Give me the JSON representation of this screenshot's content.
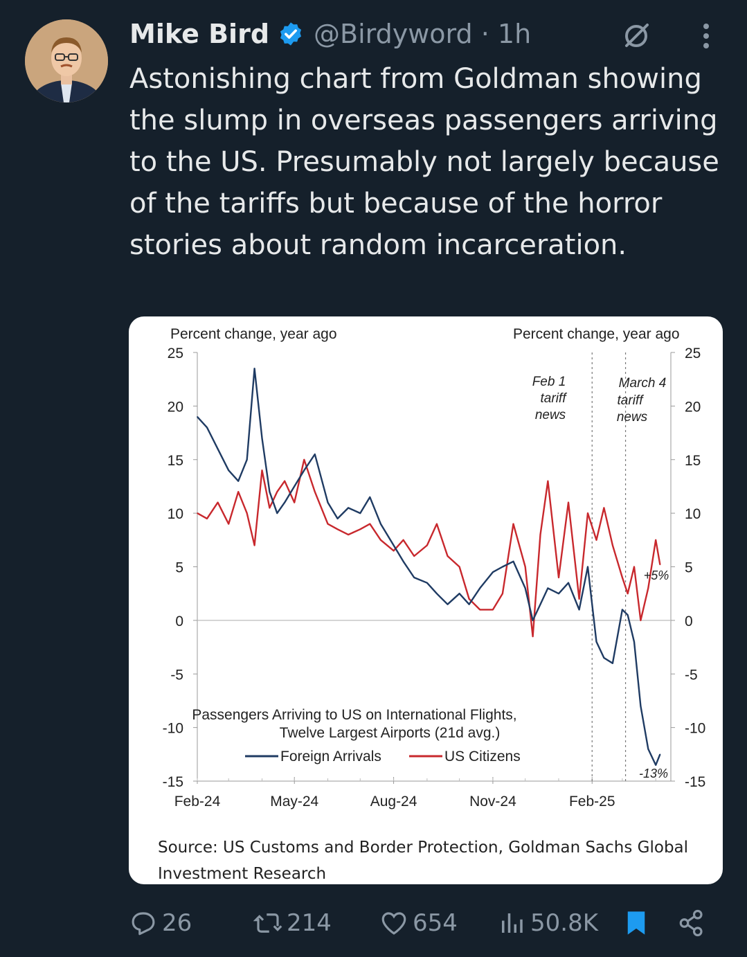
{
  "tweet": {
    "author_name": "Mike Bird",
    "handle": "@Birdyword",
    "separator": "·",
    "time": "1h",
    "text": "Astonishing chart from Goldman showing the slump in overseas passengers arriving to the US. Presumably not largely because of the tariffs but because of the horror stories about random incarceration."
  },
  "icons": {
    "verified": "verified-badge-icon",
    "grok": "grok-icon",
    "more": "more-dots-icon",
    "reply": "reply-icon",
    "retweet": "retweet-icon",
    "like": "heart-icon",
    "views": "views-bar-icon",
    "bookmark": "bookmark-icon",
    "share": "share-icon"
  },
  "colors": {
    "background": "#15202b",
    "verified": "#1d9bf0",
    "bookmark": "#1d9bf0",
    "foreign_series": "#1f3b63",
    "us_series": "#c8282d"
  },
  "actions": {
    "replies": "26",
    "retweets": "214",
    "likes": "654",
    "views": "50.8K"
  },
  "chart_data": {
    "type": "line",
    "title": "Passengers Arriving to US on International Flights,",
    "subtitle": "Twelve Largest Airports (21d avg.)",
    "ylabel_left": "Percent change, year ago",
    "ylabel_right": "Percent change, year ago",
    "ylim": [
      -15,
      25
    ],
    "yticks": [
      "25",
      "20",
      "15",
      "10",
      "5",
      "0",
      "-5",
      "-10",
      "-15"
    ],
    "xlim": [
      "2024-02-01",
      "2025-04-15"
    ],
    "xticks": [
      "Feb-24",
      "May-24",
      "Aug-24",
      "Nov-24",
      "Feb-25"
    ],
    "annotations": {
      "feb1": [
        "Feb 1",
        "tariff",
        "news"
      ],
      "mar4": [
        "March 4",
        "tariff",
        "news"
      ],
      "us_end": "+5%",
      "foreign_end": "-13%"
    },
    "vlines": [
      "2025-02-01",
      "2025-03-04"
    ],
    "series": [
      {
        "name": "Foreign Arrivals",
        "color": "#1f3b63",
        "x": [
          "2024-02-01",
          "2024-02-10",
          "2024-02-20",
          "2024-03-01",
          "2024-03-10",
          "2024-03-18",
          "2024-03-25",
          "2024-04-01",
          "2024-04-08",
          "2024-04-15",
          "2024-04-22",
          "2024-05-01",
          "2024-05-10",
          "2024-05-20",
          "2024-06-01",
          "2024-06-10",
          "2024-06-20",
          "2024-07-01",
          "2024-07-10",
          "2024-07-20",
          "2024-08-01",
          "2024-08-10",
          "2024-08-20",
          "2024-09-01",
          "2024-09-10",
          "2024-09-20",
          "2024-10-01",
          "2024-10-10",
          "2024-10-20",
          "2024-11-01",
          "2024-11-10",
          "2024-11-20",
          "2024-12-01",
          "2024-12-08",
          "2024-12-15",
          "2024-12-22",
          "2025-01-01",
          "2025-01-10",
          "2025-01-20",
          "2025-01-28",
          "2025-02-05",
          "2025-02-12",
          "2025-02-20",
          "2025-03-01",
          "2025-03-06",
          "2025-03-12",
          "2025-03-18",
          "2025-03-25",
          "2025-04-01",
          "2025-04-05"
        ],
        "values": [
          19,
          18,
          16,
          14,
          13,
          15,
          23.5,
          17,
          12,
          10,
          11,
          12.5,
          14,
          15.5,
          11,
          9.5,
          10.5,
          10,
          11.5,
          9,
          7,
          5.5,
          4,
          3.5,
          2.5,
          1.5,
          2.5,
          1.5,
          3,
          4.5,
          5,
          5.5,
          3,
          0,
          1.5,
          3,
          2.5,
          3.5,
          1,
          5,
          -2,
          -3.5,
          -4,
          1,
          0.5,
          -2,
          -8,
          -12,
          -13.5,
          -12.5
        ]
      },
      {
        "name": "US Citizens",
        "color": "#c8282d",
        "x": [
          "2024-02-01",
          "2024-02-10",
          "2024-02-20",
          "2024-03-01",
          "2024-03-10",
          "2024-03-18",
          "2024-03-25",
          "2024-04-01",
          "2024-04-08",
          "2024-04-15",
          "2024-04-22",
          "2024-05-01",
          "2024-05-10",
          "2024-05-20",
          "2024-06-01",
          "2024-06-10",
          "2024-06-20",
          "2024-07-01",
          "2024-07-10",
          "2024-07-20",
          "2024-08-01",
          "2024-08-10",
          "2024-08-20",
          "2024-09-01",
          "2024-09-10",
          "2024-09-20",
          "2024-10-01",
          "2024-10-10",
          "2024-10-20",
          "2024-11-01",
          "2024-11-10",
          "2024-11-20",
          "2024-12-01",
          "2024-12-08",
          "2024-12-15",
          "2024-12-22",
          "2025-01-01",
          "2025-01-10",
          "2025-01-20",
          "2025-01-28",
          "2025-02-05",
          "2025-02-12",
          "2025-02-20",
          "2025-03-01",
          "2025-03-06",
          "2025-03-12",
          "2025-03-18",
          "2025-03-25",
          "2025-04-01",
          "2025-04-05"
        ],
        "values": [
          10,
          9.5,
          11,
          9,
          12,
          10,
          7,
          14,
          10.5,
          12,
          13,
          11,
          15,
          12,
          9,
          8.5,
          8,
          8.5,
          9,
          7.5,
          6.5,
          7.5,
          6,
          7,
          9,
          6,
          5,
          2,
          1,
          1,
          2.5,
          9,
          5,
          -1.5,
          8,
          13,
          4,
          11,
          2,
          10,
          7.5,
          10.5,
          7,
          4,
          2.5,
          5,
          0,
          3,
          7.5,
          5.2
        ]
      }
    ],
    "legend": [
      "Foreign Arrivals",
      "US Citizens"
    ],
    "source": "Source: US Customs and Border Protection, Goldman Sachs Global Investment Research"
  }
}
